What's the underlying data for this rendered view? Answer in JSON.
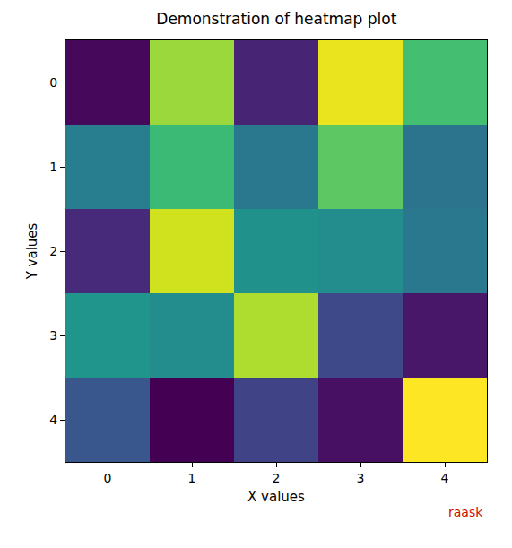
{
  "chart_data": {
    "type": "heatmap",
    "title": "Demonstration of heatmap plot",
    "x_label": "X values",
    "y_label": "Y values",
    "x": [
      0,
      1,
      2,
      3,
      4
    ],
    "y": [
      0,
      1,
      2,
      3,
      4
    ],
    "cells": [
      [
        0.02,
        0.85,
        0.1,
        0.97,
        0.7
      ],
      [
        0.42,
        0.68,
        0.4,
        0.75,
        0.38
      ],
      [
        0.12,
        0.93,
        0.5,
        0.48,
        0.4
      ],
      [
        0.52,
        0.48,
        0.88,
        0.22,
        0.06
      ],
      [
        0.27,
        0.0,
        0.2,
        0.04,
        1.0
      ]
    ],
    "color": "Viridis",
    "xlim": [
      -0.5,
      4.5
    ],
    "ylim": [
      4.5,
      -0.5
    ],
    "xticks": [
      0,
      1,
      2,
      3,
      4
    ],
    "yticks": [
      0,
      1,
      2,
      3,
      4
    ],
    "grid": false,
    "annotations": [
      "raask"
    ]
  }
}
